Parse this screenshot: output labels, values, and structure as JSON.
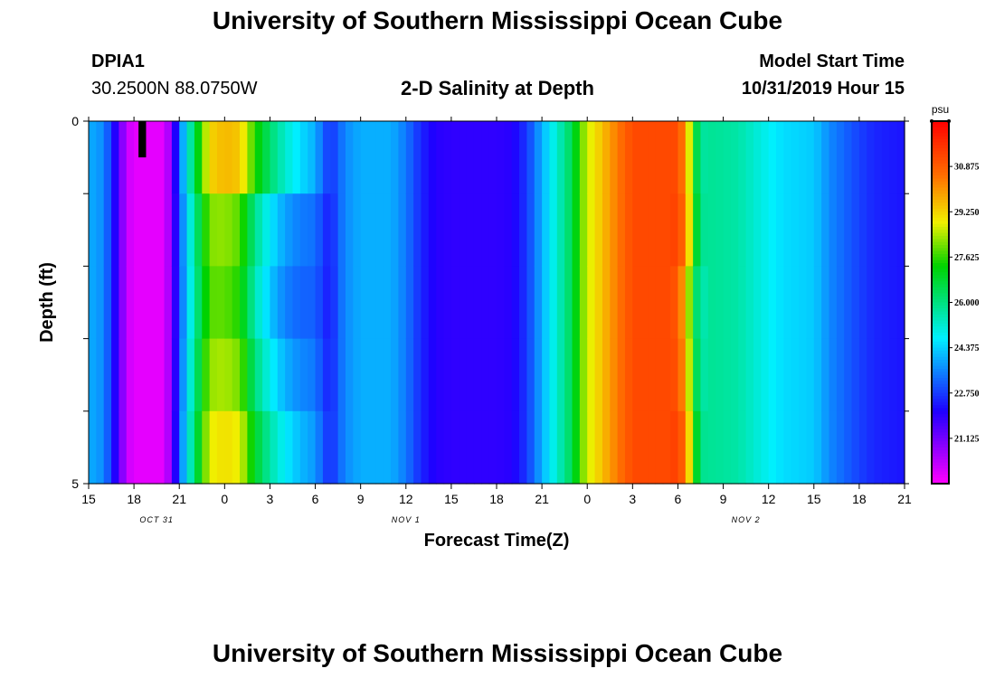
{
  "page": {
    "title_top": "University of Southern Mississippi Ocean Cube",
    "title_bottom": "University of Southern Mississippi Ocean Cube",
    "station_id": "DPIA1",
    "station_coords": "30.2500N 88.0750W",
    "model_label": "Model Start Time",
    "model_time": "10/31/2019 Hour 15"
  },
  "chart_data": {
    "type": "heatmap",
    "title": "2-D Salinity at Depth",
    "xlabel": "Forecast Time(Z)",
    "ylabel": "Depth (ft)",
    "x_start_hour": 0,
    "x_end_hour": 54,
    "x_ticks": [
      {
        "hour": 0,
        "label": "15"
      },
      {
        "hour": 3,
        "label": "18"
      },
      {
        "hour": 6,
        "label": "21"
      },
      {
        "hour": 9,
        "label": "0"
      },
      {
        "hour": 12,
        "label": "3"
      },
      {
        "hour": 15,
        "label": "6"
      },
      {
        "hour": 18,
        "label": "9"
      },
      {
        "hour": 21,
        "label": "12"
      },
      {
        "hour": 24,
        "label": "15"
      },
      {
        "hour": 27,
        "label": "18"
      },
      {
        "hour": 30,
        "label": "21"
      },
      {
        "hour": 33,
        "label": "0"
      },
      {
        "hour": 36,
        "label": "3"
      },
      {
        "hour": 39,
        "label": "6"
      },
      {
        "hour": 42,
        "label": "9"
      },
      {
        "hour": 45,
        "label": "12"
      },
      {
        "hour": 48,
        "label": "15"
      },
      {
        "hour": 51,
        "label": "18"
      },
      {
        "hour": 54,
        "label": "21"
      }
    ],
    "date_labels": [
      {
        "hour": 4.5,
        "label": "OCT 31"
      },
      {
        "hour": 21,
        "label": "NOV 1"
      },
      {
        "hour": 43.5,
        "label": "NOV 2"
      }
    ],
    "y_ticks": [
      {
        "depth": 0,
        "label": "0"
      },
      {
        "depth": 1,
        "label": ""
      },
      {
        "depth": 2,
        "label": ""
      },
      {
        "depth": 3,
        "label": ""
      },
      {
        "depth": 4,
        "label": ""
      },
      {
        "depth": 5,
        "label": "5"
      }
    ],
    "depth_range": [
      0,
      5
    ],
    "depth_levels": 5,
    "time_step_hours": 0.5,
    "salinity_profile": [
      [
        0,
        24.0
      ],
      [
        1,
        23.6
      ],
      [
        1.5,
        22.6
      ],
      [
        2,
        21.5
      ],
      [
        2.5,
        20.2
      ],
      [
        3,
        19.8
      ],
      [
        5,
        19.8
      ],
      [
        5.5,
        21.0
      ],
      [
        6,
        23.2
      ],
      [
        6.5,
        24.8
      ],
      [
        7,
        26.5
      ],
      [
        7.5,
        27.8
      ],
      [
        8,
        29.2
      ],
      [
        9,
        29.6
      ],
      [
        10,
        29.4
      ],
      [
        10.5,
        28.5
      ],
      [
        11,
        27.5
      ],
      [
        12,
        26.2
      ],
      [
        13,
        25.2
      ],
      [
        14,
        24.5
      ],
      [
        15,
        24.0
      ],
      [
        15.5,
        23.2
      ],
      [
        16,
        22.6
      ],
      [
        17,
        23.6
      ],
      [
        18,
        24.0
      ],
      [
        20,
        24.0
      ],
      [
        21,
        23.4
      ],
      [
        22,
        22.5
      ],
      [
        23,
        22.0
      ],
      [
        24,
        21.9
      ],
      [
        27,
        21.9
      ],
      [
        28,
        22.0
      ],
      [
        29,
        22.7
      ],
      [
        30,
        24.0
      ],
      [
        31,
        25.2
      ],
      [
        32,
        26.5
      ],
      [
        32.5,
        27.8
      ],
      [
        33,
        28.6
      ],
      [
        34,
        29.5
      ],
      [
        35,
        30.4
      ],
      [
        36,
        31.2
      ],
      [
        39,
        31.2
      ],
      [
        39.5,
        30.0
      ],
      [
        40,
        27.5
      ],
      [
        40.5,
        25.6
      ],
      [
        41,
        25.8
      ],
      [
        43,
        25.6
      ],
      [
        44,
        25.2
      ],
      [
        45,
        24.8
      ],
      [
        46,
        24.5
      ],
      [
        48,
        24.3
      ],
      [
        49,
        23.6
      ],
      [
        50,
        23.2
      ],
      [
        51,
        22.8
      ],
      [
        52,
        22.5
      ],
      [
        54,
        22.3
      ]
    ],
    "depth_offsets": [
      {
        "t0": 5.5,
        "t1": 16.5,
        "amp": [
          0,
          -1.6,
          -2.0,
          -1.4,
          -0.6
        ]
      },
      {
        "t0": 38.5,
        "t1": 41,
        "amp": [
          0,
          0.3,
          -0.5,
          -0.2,
          0.4
        ]
      }
    ],
    "missing": {
      "t0": 3.3,
      "t1": 3.8,
      "depth0": 0,
      "depth1": 0.5
    },
    "colorbar": {
      "unit": "psu",
      "min": 19.5,
      "max": 32.5,
      "ticks": [
        "30.875",
        "29.250",
        "27.625",
        "26.000",
        "24.375",
        "22.750",
        "21.125"
      ],
      "tick_values": [
        30.875,
        29.25,
        27.625,
        26.0,
        24.375,
        22.75,
        21.125
      ]
    }
  }
}
